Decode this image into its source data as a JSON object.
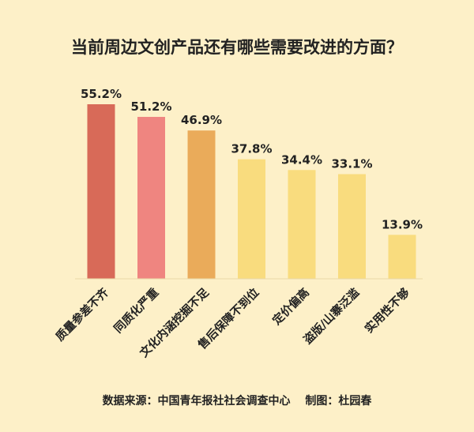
{
  "chart_data": {
    "type": "bar",
    "title": "当前周边文创产品还有哪些需要改进的方面？",
    "categories": [
      "质量参差不齐",
      "同质化严重",
      "文化内涵挖掘不足",
      "售后保障不到位",
      "定价偏高",
      "盗版/山寨泛滥",
      "实用性不够"
    ],
    "values": [
      55.2,
      51.2,
      46.9,
      37.8,
      34.4,
      33.1,
      13.9
    ],
    "value_labels": [
      "55.2%",
      "51.2%",
      "46.9%",
      "37.8%",
      "34.4%",
      "33.1%",
      "13.9%"
    ],
    "bar_colors": [
      "#d86a58",
      "#ef8580",
      "#eaab5a",
      "#f9dc7e",
      "#f9dc7e",
      "#f9dc7e",
      "#f9dc7e"
    ],
    "ylim": [
      0,
      55.2
    ],
    "grid": false,
    "legend": "none",
    "footer": "数据来源：中国青年报社社会调查中心　 制图：杜园春"
  }
}
